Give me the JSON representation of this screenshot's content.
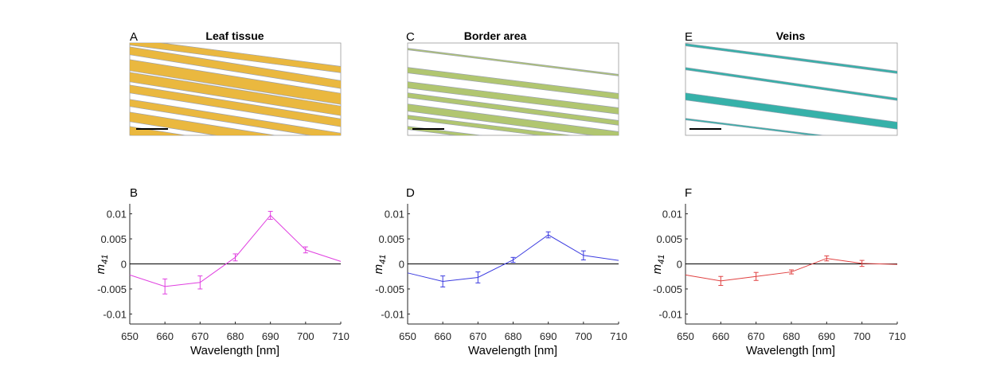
{
  "chart_data": [
    {
      "type": "image",
      "panel_letter": "A",
      "title": "Leaf tissue",
      "color": "#e8b02a",
      "scale_bar": true
    },
    {
      "type": "image",
      "panel_letter": "C",
      "title": "Border area",
      "color": "#a8c060",
      "scale_bar": true
    },
    {
      "type": "image",
      "panel_letter": "E",
      "title": "Veins",
      "color": "#20a8a0",
      "scale_bar": true
    },
    {
      "type": "line",
      "panel_letter": "B",
      "xlabel": "Wavelength [nm]",
      "ylabel": "m41",
      "xlim": [
        650,
        710
      ],
      "ylim": [
        -0.012,
        0.012
      ],
      "xticks": [
        650,
        660,
        670,
        680,
        690,
        700,
        710
      ],
      "yticks": [
        0.01,
        0.005,
        0,
        -0.005,
        -0.01
      ],
      "ytick_labels": [
        "0.01",
        "0.005",
        "0",
        "-0.005",
        "-0.01"
      ],
      "zero_line": true,
      "color": "#e040e0",
      "x": [
        650,
        660,
        670,
        680,
        690,
        700,
        710
      ],
      "y": [
        -0.0022,
        -0.0045,
        -0.0037,
        0.0013,
        0.0097,
        0.0028,
        0.0005
      ],
      "err": [
        0,
        0.0015,
        0.0013,
        0.0007,
        0.0008,
        0.0006,
        0
      ]
    },
    {
      "type": "line",
      "panel_letter": "D",
      "xlabel": "Wavelength [nm]",
      "ylabel": "m41",
      "xlim": [
        650,
        710
      ],
      "ylim": [
        -0.012,
        0.012
      ],
      "xticks": [
        650,
        660,
        670,
        680,
        690,
        700,
        710
      ],
      "yticks": [
        0.01,
        0.005,
        0,
        -0.005,
        -0.01
      ],
      "ytick_labels": [
        "0.01",
        "0.005",
        "0",
        "-0.005",
        "-0.01"
      ],
      "zero_line": true,
      "color": "#3c3ce0",
      "x": [
        650,
        660,
        670,
        680,
        690,
        700,
        710
      ],
      "y": [
        -0.0018,
        -0.0035,
        -0.0027,
        0.0008,
        0.0058,
        0.0017,
        0.0007
      ],
      "err": [
        0,
        0.0011,
        0.0011,
        0.0005,
        0.0006,
        0.0009,
        0
      ]
    },
    {
      "type": "line",
      "panel_letter": "F",
      "xlabel": "Wavelength [nm]",
      "ylabel": "m41",
      "xlim": [
        650,
        710
      ],
      "ylim": [
        -0.012,
        0.012
      ],
      "xticks": [
        650,
        660,
        670,
        680,
        690,
        700,
        710
      ],
      "yticks": [
        0.01,
        0.005,
        0,
        -0.005,
        -0.01
      ],
      "ytick_labels": [
        "0.01",
        "0.005",
        "0",
        "-0.005",
        "-0.01"
      ],
      "zero_line": true,
      "color": "#e04040",
      "x": [
        650,
        660,
        670,
        680,
        690,
        700,
        710
      ],
      "y": [
        -0.0022,
        -0.0034,
        -0.0025,
        -0.0016,
        0.0011,
        0.0001,
        -0.0001
      ],
      "err": [
        0,
        0.0009,
        0.0008,
        0.0004,
        0.0005,
        0.0006,
        0
      ]
    }
  ]
}
